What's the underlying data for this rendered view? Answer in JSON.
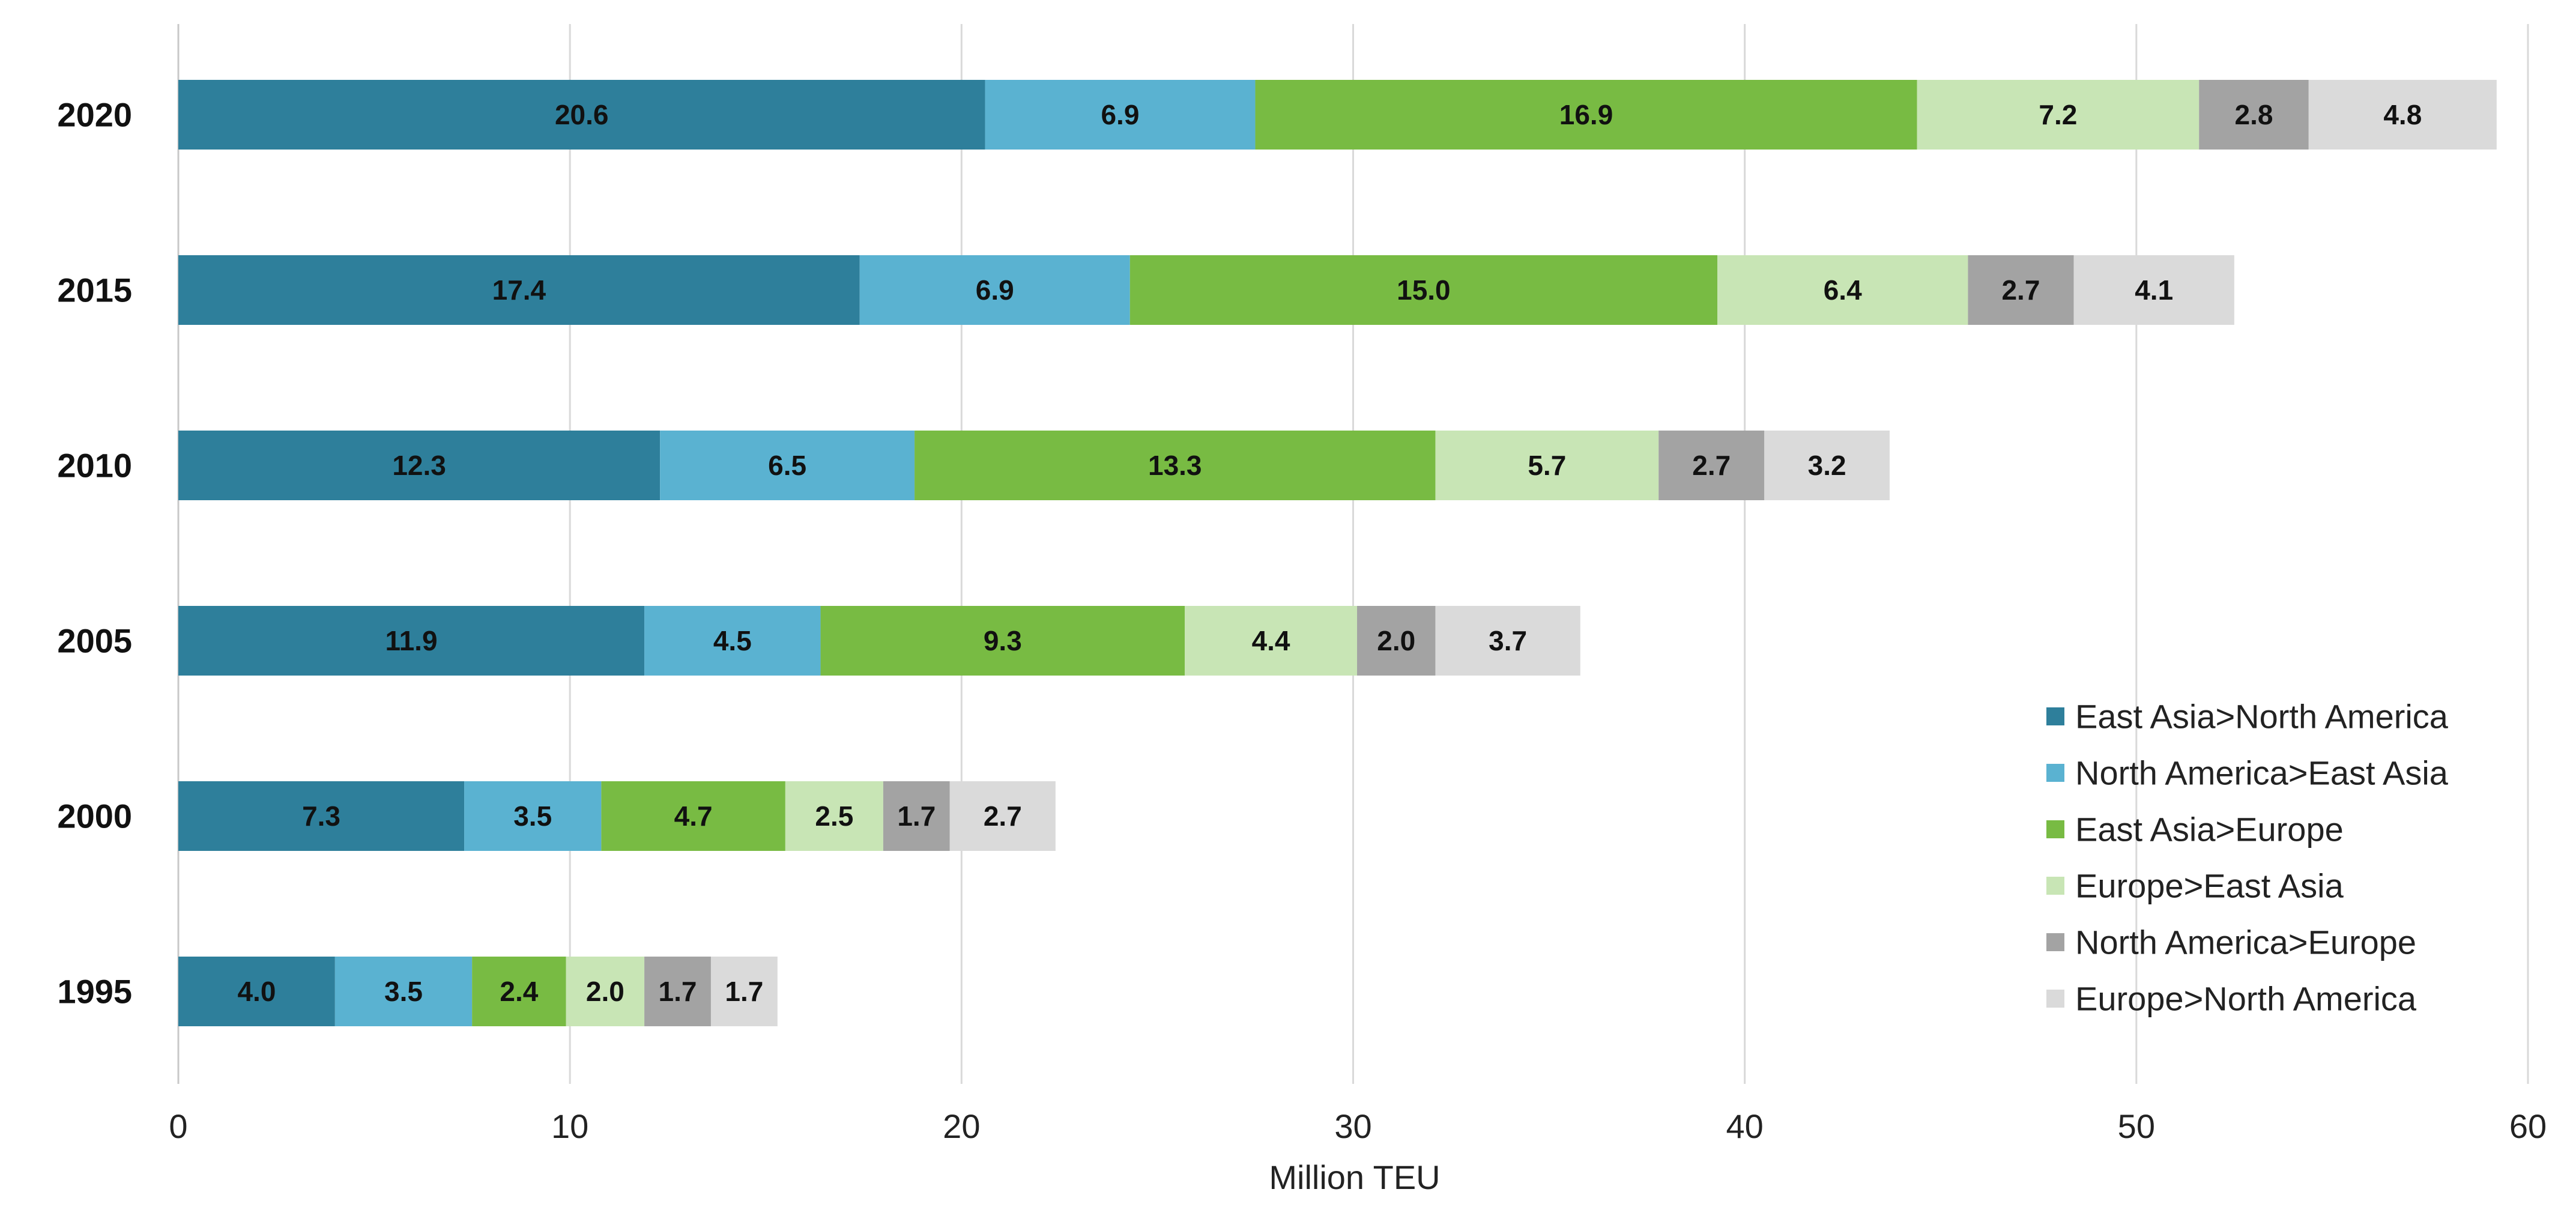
{
  "chart_data": {
    "type": "bar",
    "orientation": "horizontal",
    "stacked": true,
    "categories": [
      "2020",
      "2015",
      "2010",
      "2005",
      "2000",
      "1995"
    ],
    "xlabel": "Million TEU",
    "xlim": [
      0,
      60
    ],
    "xticks": [
      0,
      10,
      20,
      30,
      40,
      50,
      60
    ],
    "grid": "vertical",
    "legend_position": "bottom-right",
    "series": [
      {
        "name": "East Asia>North America",
        "color": "#2e7f9b",
        "values": [
          20.6,
          17.4,
          12.3,
          11.9,
          7.3,
          4.0
        ],
        "labels": [
          "20.6",
          "17.4",
          "12.3",
          "11.9",
          "7.3",
          "4.0"
        ]
      },
      {
        "name": "North America>East Asia",
        "color": "#5ab2d1",
        "values": [
          6.9,
          6.9,
          6.5,
          4.5,
          3.5,
          3.5
        ],
        "labels": [
          "6.9",
          "6.9",
          "6.5",
          "4.5",
          "3.5",
          "3.5"
        ]
      },
      {
        "name": "East Asia>Europe",
        "color": "#78bb43",
        "values": [
          16.9,
          15.0,
          13.3,
          9.3,
          4.7,
          2.4
        ],
        "labels": [
          "16.9",
          "15.0",
          "13.3",
          "9.3",
          "4.7",
          "2.4"
        ]
      },
      {
        "name": "Europe>East Asia",
        "color": "#c8e5b5",
        "values": [
          7.2,
          6.4,
          5.7,
          4.4,
          2.5,
          2.0
        ],
        "labels": [
          "7.2",
          "6.4",
          "5.7",
          "4.4",
          "2.5",
          "2.0"
        ]
      },
      {
        "name": "North America>Europe",
        "color": "#a3a3a3",
        "values": [
          2.8,
          2.7,
          2.7,
          2.0,
          1.7,
          1.7
        ],
        "labels": [
          "2.8",
          "2.7",
          "2.7",
          "2.0",
          "1.7",
          "1.7"
        ]
      },
      {
        "name": "Europe>North America",
        "color": "#dadada",
        "values": [
          4.8,
          4.1,
          3.2,
          3.7,
          2.7,
          1.7
        ],
        "labels": [
          "4.8",
          "4.1",
          "3.2",
          "3.7",
          "2.7",
          "1.7"
        ]
      }
    ]
  }
}
